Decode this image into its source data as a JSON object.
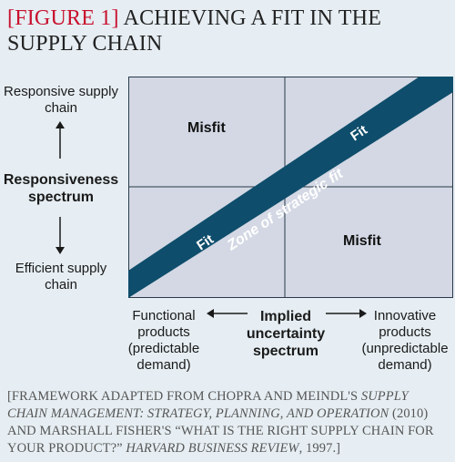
{
  "title": {
    "tag": "[FIGURE 1]",
    "text": "ACHIEVING A FIT IN THE SUPPLY CHAIN"
  },
  "y_axis": {
    "top_label": "Responsive supply chain",
    "name": "Responsiveness spectrum",
    "bottom_label": "Efficient supply chain"
  },
  "x_axis": {
    "left_label": "Functional products (predictable demand)",
    "name": "Implied uncertainty spectrum",
    "right_label": "Innovative products (unpredictable demand)"
  },
  "quadrants": {
    "top_left": "Misfit",
    "bottom_right": "Misfit"
  },
  "band": {
    "label": "Zone of strategic fit",
    "fit_lower": "Fit",
    "fit_upper": "Fit",
    "color": "#0e4d6b"
  },
  "grid_color": "#d3d8e4",
  "footnote": {
    "p1": "[Framework adapted from Chopra and Meindl's ",
    "i1": "Supply Chain Management: Strategy, Planning, and Operation",
    "p2": " (2010) and Marshall Fisher's “What is the right supply chain for your product?” ",
    "i2": "Harvard Business Review",
    "p3": ", 1997.]"
  }
}
